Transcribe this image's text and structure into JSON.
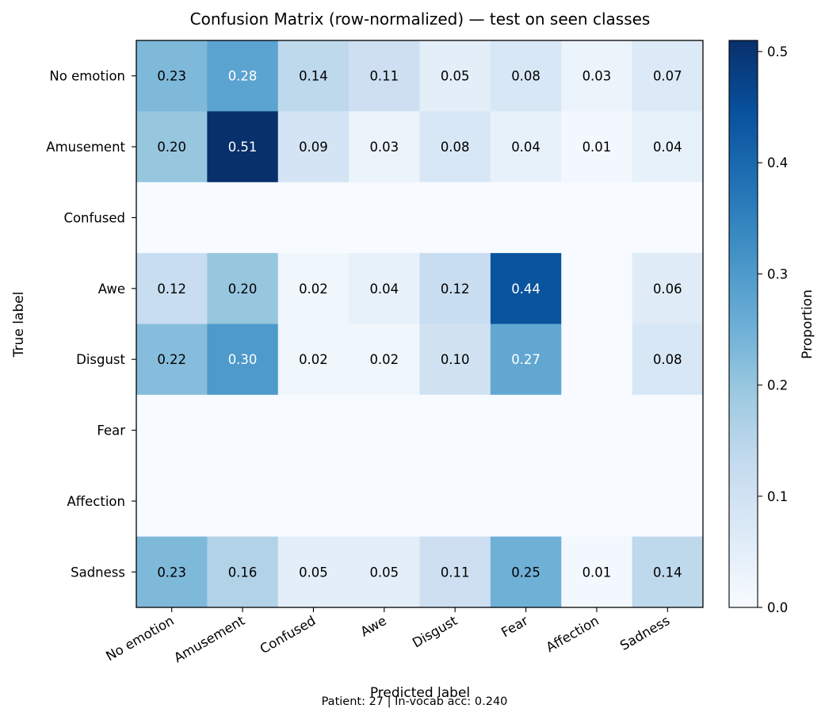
{
  "chart_data": {
    "type": "heatmap",
    "title": "Confusion Matrix (row-normalized) — test on seen classes",
    "xlabel": "Predicted label",
    "ylabel": "True label",
    "row_labels": [
      "No emotion",
      "Amusement",
      "Confused",
      "Awe",
      "Disgust",
      "Fear",
      "Affection",
      "Sadness"
    ],
    "col_labels": [
      "No emotion",
      "Amusement",
      "Confused",
      "Awe",
      "Disgust",
      "Fear",
      "Affection",
      "Sadness"
    ],
    "values": [
      [
        0.23,
        0.28,
        0.14,
        0.11,
        0.05,
        0.08,
        0.03,
        0.07
      ],
      [
        0.2,
        0.51,
        0.09,
        0.03,
        0.08,
        0.04,
        0.01,
        0.04
      ],
      [
        0.0,
        0.0,
        0.0,
        0.0,
        0.0,
        0.0,
        0.0,
        0.0
      ],
      [
        0.12,
        0.2,
        0.02,
        0.04,
        0.12,
        0.44,
        0.0,
        0.06
      ],
      [
        0.22,
        0.3,
        0.02,
        0.02,
        0.1,
        0.27,
        0.0,
        0.08
      ],
      [
        0.0,
        0.0,
        0.0,
        0.0,
        0.0,
        0.0,
        0.0,
        0.0
      ],
      [
        0.0,
        0.0,
        0.0,
        0.0,
        0.0,
        0.0,
        0.0,
        0.0
      ],
      [
        0.23,
        0.16,
        0.05,
        0.05,
        0.11,
        0.25,
        0.01,
        0.14
      ]
    ],
    "annotations": [
      [
        "0.23",
        "0.28",
        "0.14",
        "0.11",
        "0.05",
        "0.08",
        "0.03",
        "0.07"
      ],
      [
        "0.20",
        "0.51",
        "0.09",
        "0.03",
        "0.08",
        "0.04",
        "0.01",
        "0.04"
      ],
      [
        "",
        "",
        "",
        "",
        "",
        "",
        "",
        ""
      ],
      [
        "0.12",
        "0.20",
        "0.02",
        "0.04",
        "0.12",
        "0.44",
        "",
        "0.06"
      ],
      [
        "0.22",
        "0.30",
        "0.02",
        "0.02",
        "0.10",
        "0.27",
        "",
        "0.08"
      ],
      [
        "",
        "",
        "",
        "",
        "",
        "",
        "",
        ""
      ],
      [
        "",
        "",
        "",
        "",
        "",
        "",
        "",
        ""
      ],
      [
        "0.23",
        "0.16",
        "0.05",
        "0.05",
        "0.11",
        "0.25",
        "0.01",
        "0.14"
      ]
    ],
    "colormap": "Blues",
    "vmin": 0.0,
    "vmax": 0.51,
    "colorbar": {
      "label": "Proportion",
      "ticks": [
        "0.0",
        "0.1",
        "0.2",
        "0.3",
        "0.4",
        "0.5"
      ],
      "tick_values": [
        0.0,
        0.1,
        0.2,
        0.3,
        0.4,
        0.5
      ]
    },
    "grid": false,
    "legend": "none"
  },
  "footer": "Patient: 27 | In-vocab acc: 0.240"
}
